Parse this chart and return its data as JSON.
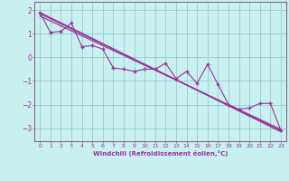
{
  "xlabel": "Windchill (Refroidissement éolien,°C)",
  "bg_color": "#c8f0f0",
  "line_color": "#993399",
  "grid_color": "#99cccc",
  "axis_color": "#886688",
  "xlim": [
    -0.5,
    23.5
  ],
  "ylim": [
    -3.55,
    2.35
  ],
  "yticks": [
    2,
    1,
    0,
    -1,
    -2,
    -3
  ],
  "xticks": [
    0,
    1,
    2,
    3,
    4,
    5,
    6,
    7,
    8,
    9,
    10,
    11,
    12,
    13,
    14,
    15,
    16,
    17,
    18,
    19,
    20,
    21,
    22,
    23
  ],
  "data_x": [
    0,
    1,
    2,
    3,
    4,
    5,
    6,
    7,
    8,
    9,
    10,
    11,
    12,
    13,
    14,
    15,
    16,
    17,
    18,
    19,
    20,
    21,
    22,
    23
  ],
  "data_y": [
    1.9,
    1.05,
    1.1,
    1.45,
    0.45,
    0.5,
    0.35,
    -0.45,
    -0.5,
    -0.6,
    -0.5,
    -0.5,
    -0.25,
    -0.9,
    -0.6,
    -1.1,
    -0.3,
    -1.15,
    -2.0,
    -2.2,
    -2.15,
    -1.95,
    -1.95,
    -3.1
  ],
  "trend_lines": [
    {
      "x0": 0,
      "y0": 1.9,
      "x1": 23,
      "y1": -3.15
    },
    {
      "x0": 0,
      "y0": 1.75,
      "x1": 23,
      "y1": -3.05
    },
    {
      "x0": 0,
      "y0": 1.85,
      "x1": 23,
      "y1": -3.1
    }
  ]
}
